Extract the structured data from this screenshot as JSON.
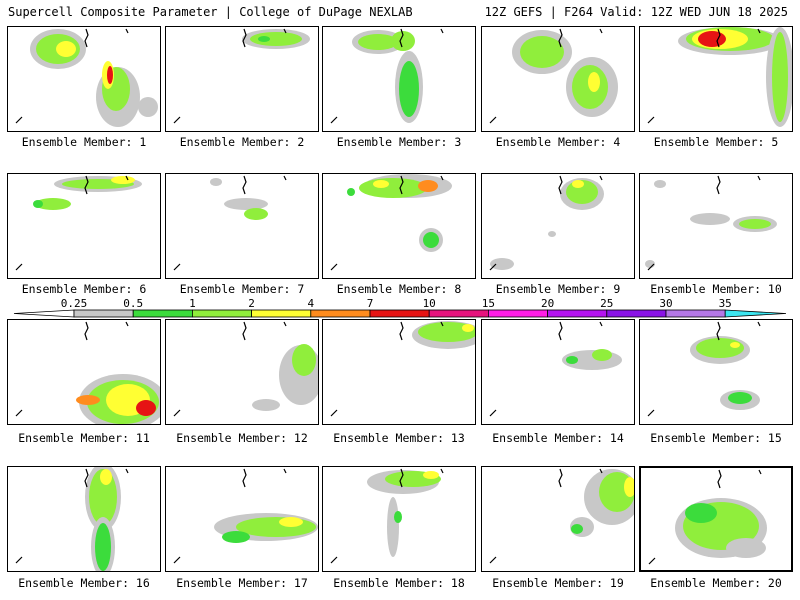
{
  "header": {
    "left_title": "Supercell Composite Parameter | College of DuPage NEXLAB",
    "right_title": "12Z GEFS | F264 Valid: 12Z WED JUN 18 2025"
  },
  "panel_label_prefix": "Ensemble Member: ",
  "members": [
    1,
    2,
    3,
    4,
    5,
    6,
    7,
    8,
    9,
    10,
    11,
    12,
    13,
    14,
    15,
    16,
    17,
    18,
    19,
    20
  ],
  "selected_member": 20,
  "legend": {
    "ticks": [
      "0.25",
      "0.5",
      "1",
      "2",
      "4",
      "7",
      "10",
      "15",
      "20",
      "25",
      "30",
      "35"
    ],
    "colors": [
      "#ffffff",
      "#c8c8c8",
      "#3cdc3c",
      "#90ee3c",
      "#ffff33",
      "#ff8c1e",
      "#e61414",
      "#e6147d",
      "#ff1ee6",
      "#b414f0",
      "#8a14e6",
      "#b478e6",
      "#3ce6f0"
    ]
  }
}
